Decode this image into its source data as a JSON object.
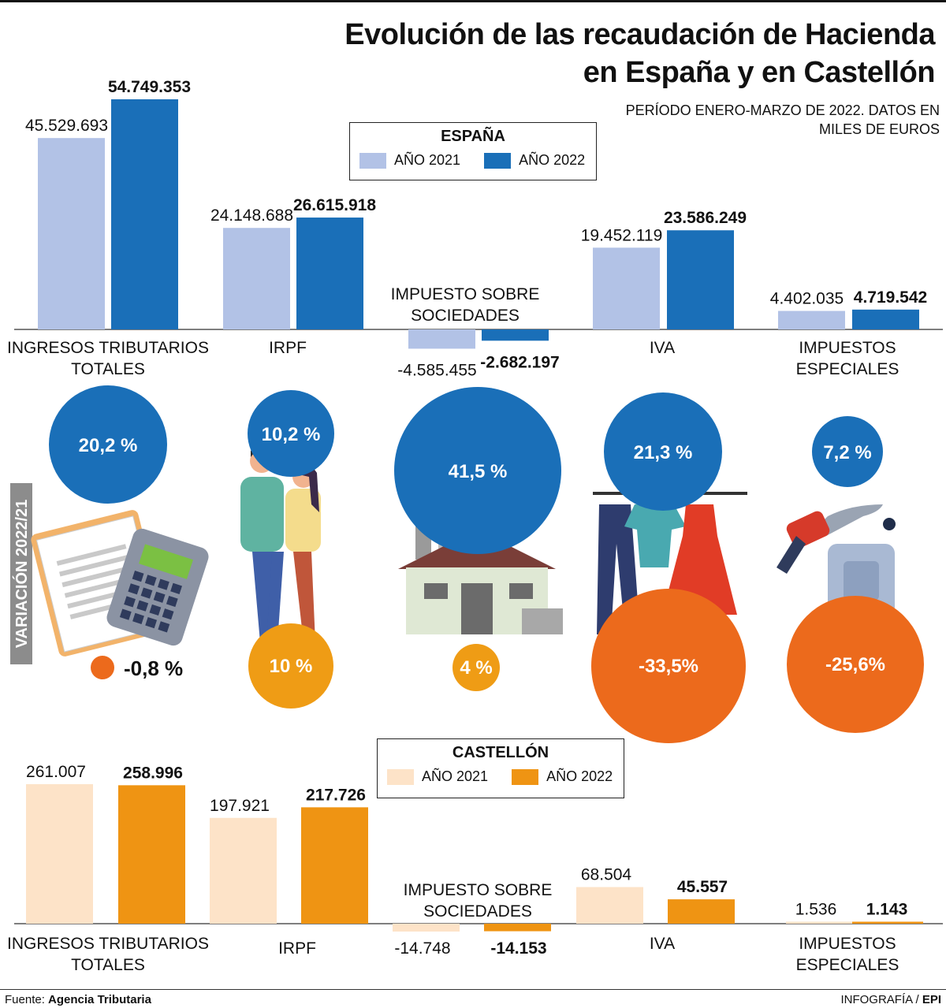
{
  "header": {
    "title_line1": "Evolución de las recaudación de Hacienda",
    "title_line2": "en España y en Castellón",
    "subtitle_line1": "PERÍODO ENERO-MARZO DE 2022. DATOS EN",
    "subtitle_line2": "MILES DE EUROS"
  },
  "colors": {
    "spain_2021": "#b2c2e6",
    "spain_2022": "#1a6fb8",
    "cast_2021": "#fde3c8",
    "cast_2022": "#ef9413",
    "circle_blue": "#1a6fb8",
    "circle_orange": "#ec6a1c",
    "circle_amber": "#ef9c15",
    "axis": "#555555",
    "side_band": "#8c8c8c"
  },
  "legend_spain": {
    "title": "ESPAÑA",
    "label_2021": "AÑO 2021",
    "label_2022": "AÑO 2022"
  },
  "legend_castellon": {
    "title": "CASTELLÓN",
    "label_2021": "AÑO 2021",
    "label_2022": "AÑO 2022"
  },
  "side_label": "VARIACIÓN 2022/21",
  "categories": {
    "ingresos": [
      "INGRESOS TRIBUTARIOS",
      "TOTALES"
    ],
    "irpf": [
      "IRPF"
    ],
    "sociedades": [
      "IMPUESTO SOBRE",
      "SOCIEDADES"
    ],
    "iva": [
      "IVA"
    ],
    "especiales": [
      "IMPUESTOS",
      "ESPECIALES"
    ]
  },
  "chart_data": [
    {
      "type": "bar",
      "title": "ESPAÑA",
      "categories": [
        "INGRESOS TRIBUTARIOS TOTALES",
        "IRPF",
        "IMPUESTO SOBRE SOCIEDADES",
        "IVA",
        "IMPUESTOS ESPECIALES"
      ],
      "series": [
        {
          "name": "AÑO 2021",
          "values": [
            45529693,
            24148688,
            -4585455,
            19452119,
            4402035
          ],
          "labels": [
            "45.529.693",
            "24.148.688",
            "-4.585.455",
            "19.452.119",
            "4.402.035"
          ]
        },
        {
          "name": "AÑO 2022",
          "values": [
            54749353,
            26615918,
            -2682197,
            23586249,
            4719542
          ],
          "labels": [
            "54.749.353",
            "26.615.918",
            "-2.682.197",
            "23.586.249",
            "4.719.542"
          ]
        }
      ],
      "ylabel": "miles de euros"
    },
    {
      "type": "bubble",
      "title": "VARIACIÓN 2022/21",
      "categories": [
        "INGRESOS TRIBUTARIOS TOTALES",
        "IRPF",
        "IMPUESTO SOBRE SOCIEDADES",
        "IVA",
        "IMPUESTOS ESPECIALES"
      ],
      "series": [
        {
          "name": "España",
          "values": [
            20.2,
            10.2,
            41.5,
            21.3,
            7.2
          ],
          "labels": [
            "20,2 %",
            "10,2 %",
            "41,5 %",
            "21,3 %",
            "7,2 %"
          ]
        },
        {
          "name": "Castellón",
          "values": [
            -0.8,
            10,
            4,
            -33.5,
            -25.6
          ],
          "labels": [
            "-0,8 %",
            "10 %",
            "4 %",
            "-33,5%",
            "-25,6%"
          ]
        }
      ]
    },
    {
      "type": "bar",
      "title": "CASTELLÓN",
      "categories": [
        "INGRESOS TRIBUTARIOS TOTALES",
        "IRPF",
        "IMPUESTO SOBRE SOCIEDADES",
        "IVA",
        "IMPUESTOS ESPECIALES"
      ],
      "series": [
        {
          "name": "AÑO 2021",
          "values": [
            261007,
            197921,
            -14748,
            68504,
            1536
          ],
          "labels": [
            "261.007",
            "197.921",
            "-14.748",
            "68.504",
            "1.536"
          ]
        },
        {
          "name": "AÑO 2022",
          "values": [
            258996,
            217726,
            -14153,
            45557,
            1143
          ],
          "labels": [
            "258.996",
            "217.726",
            "-14.153",
            "45.557",
            "1.143"
          ]
        }
      ],
      "ylabel": "miles de euros"
    }
  ],
  "footer": {
    "source_prefix": "Fuente:",
    "source_name": "Agencia Tributaria",
    "credit_prefix": "INFOGRAFÍA /",
    "credit_name": "EPI"
  }
}
